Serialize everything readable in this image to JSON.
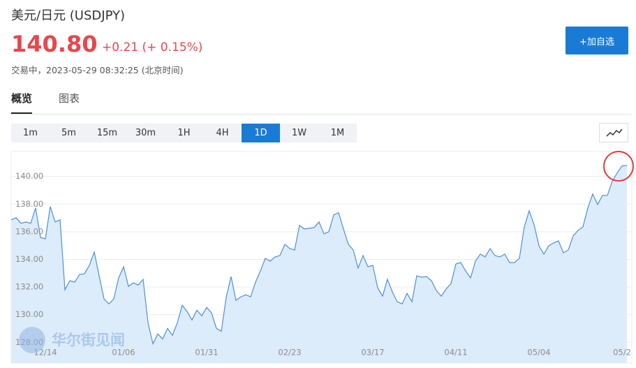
{
  "header": {
    "title": "美元/日元  (USDJPY)",
    "price": "140.80",
    "change": "+0.21 (+ 0.15%)",
    "status": "交易中，2023-05-29 08:32:25 (北京时间)"
  },
  "button": "+加自选",
  "tabs": [
    "概览",
    "图表"
  ],
  "active_tab": 0,
  "timeframes": [
    "1m",
    "5m",
    "15m",
    "30m",
    "1H",
    "4H",
    "1D",
    "1W",
    "1M"
  ],
  "active_timeframe": 6,
  "watermark": "华尔街见闻",
  "chart_data": {
    "type": "area",
    "categories": [
      null,
      null,
      null,
      null,
      null,
      null,
      null,
      "12/14",
      null,
      null,
      null,
      null,
      null,
      null,
      null,
      null,
      null,
      null,
      null,
      null,
      null,
      null,
      null,
      "01/06",
      null,
      null,
      null,
      null,
      null,
      null,
      null,
      null,
      null,
      null,
      null,
      null,
      null,
      null,
      null,
      null,
      "01/31",
      null,
      null,
      null,
      null,
      null,
      null,
      null,
      null,
      null,
      null,
      null,
      null,
      null,
      null,
      null,
      null,
      "02/23",
      null,
      null,
      null,
      null,
      null,
      null,
      null,
      null,
      null,
      null,
      null,
      null,
      null,
      null,
      null,
      null,
      "03/17",
      null,
      null,
      null,
      null,
      null,
      null,
      null,
      null,
      null,
      null,
      null,
      null,
      null,
      null,
      null,
      null,
      "04/11",
      null,
      null,
      null,
      null,
      null,
      null,
      null,
      null,
      null,
      null,
      null,
      null,
      null,
      null,
      null,
      null,
      "05/04",
      null,
      null,
      null,
      null,
      null,
      null,
      null,
      null,
      null,
      null,
      null,
      null,
      null,
      null,
      null,
      null,
      "05/2",
      null
    ],
    "series": [
      {
        "name": "USDJPY",
        "color": "#4a90d9",
        "values": [
          136.86,
          137.01,
          136.61,
          136.71,
          136.61,
          137.72,
          135.59,
          135.49,
          137.82,
          136.71,
          136.86,
          131.8,
          132.46,
          132.35,
          132.91,
          132.96,
          133.57,
          134.53,
          132.81,
          131.14,
          130.78,
          131.14,
          132.66,
          133.47,
          132.05,
          132.3,
          132.15,
          132.56,
          129.42,
          127.9,
          128.61,
          128.25,
          129.01,
          128.51,
          129.42,
          130.68,
          130.23,
          129.62,
          130.33,
          129.92,
          130.53,
          130.13,
          129.01,
          128.81,
          131.24,
          132.76,
          131.04,
          131.29,
          131.44,
          131.29,
          132.35,
          133.16,
          134.08,
          133.87,
          134.18,
          134.28,
          135.09,
          134.78,
          134.68,
          136.46,
          136.2,
          136.25,
          136.3,
          136.71,
          135.85,
          136.0,
          137.22,
          137.37,
          136.2,
          135.09,
          134.68,
          133.37,
          134.28,
          133.47,
          133.57,
          131.95,
          131.34,
          132.56,
          131.65,
          130.94,
          130.78,
          131.54,
          130.94,
          132.81,
          132.71,
          132.76,
          132.46,
          131.75,
          131.34,
          131.85,
          132.25,
          133.67,
          133.77,
          133.16,
          132.66,
          133.87,
          134.38,
          134.18,
          134.78,
          134.28,
          134.18,
          134.38,
          133.77,
          133.77,
          134.08,
          136.35,
          137.52,
          136.51,
          134.99,
          134.38,
          134.99,
          135.19,
          135.34,
          134.48,
          134.68,
          135.7,
          136.1,
          136.35,
          137.72,
          138.73,
          137.97,
          138.63,
          138.63,
          139.65,
          140.25,
          140.76,
          140.8
        ]
      }
    ],
    "fill": "#ddecfb",
    "ylim": [
      126.5,
      141.8
    ],
    "yticks": [
      {
        "value": 128,
        "label": "128.00"
      },
      {
        "value": 130,
        "label": "130.00"
      },
      {
        "value": 132,
        "label": "132.00"
      },
      {
        "value": 134,
        "label": "134.00"
      },
      {
        "value": 136,
        "label": "136.00"
      },
      {
        "value": 138,
        "label": "138.00"
      },
      {
        "value": 140,
        "label": "140.00"
      }
    ],
    "grid": true
  }
}
